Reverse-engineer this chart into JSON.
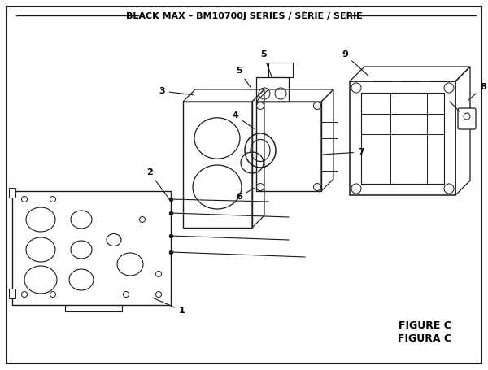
{
  "title": "BLACK MAX – BM10700J SERIES / SÉRIE / SERIE",
  "figure_label": "FIGURE C",
  "figura_label": "FIGURA C",
  "bg_color": "#ffffff",
  "border_color": "#1a1a1a",
  "line_color": "#1a1a1a",
  "title_fontsize": 8,
  "fig_label_fontsize": 9
}
